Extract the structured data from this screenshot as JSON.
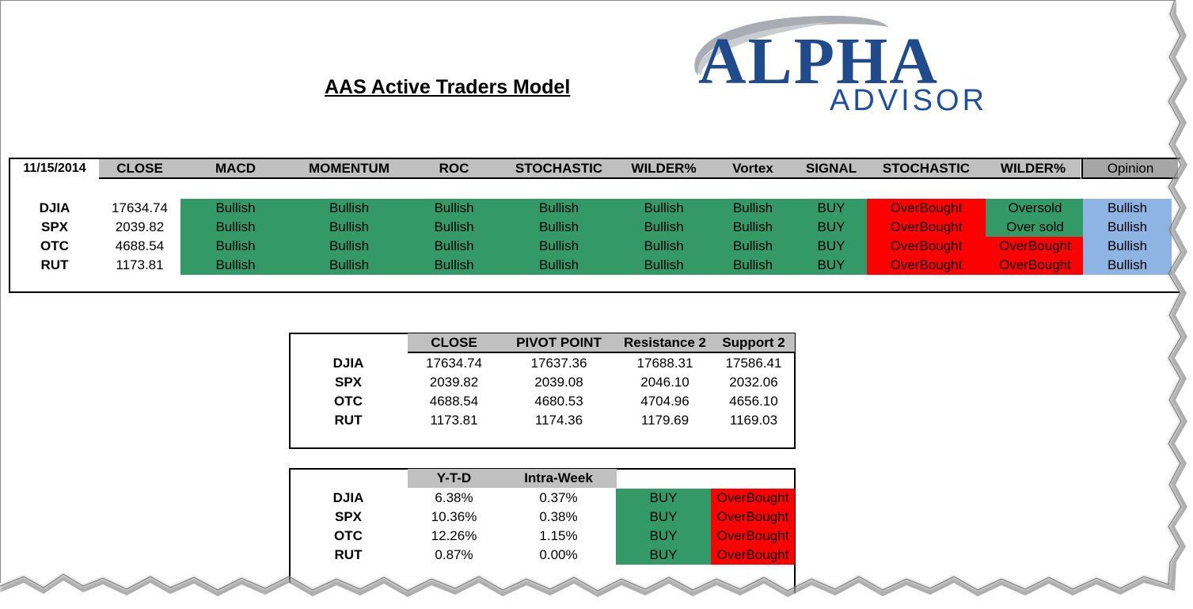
{
  "report": {
    "title": "AAS Active Traders Model"
  },
  "logo": {
    "main": "ALPHA",
    "sub": "ADVISOR"
  },
  "model": {
    "date": "11/15/2014",
    "headers": [
      "CLOSE",
      "MACD",
      "MOMENTUM",
      "ROC",
      "STOCHASTIC",
      "WILDER%",
      "Vortex",
      "SIGNAL",
      "STOCHASTIC",
      "WILDER%"
    ],
    "opinion_header": "Opinion",
    "rows": [
      {
        "symbol": "DJIA",
        "close": "17634.74",
        "macd": "Bullish",
        "momentum": "Bullish",
        "roc": "Bullish",
        "stochastic": "Bullish",
        "wilder": "Bullish",
        "vortex": "Bullish",
        "signal": "BUY",
        "stoch_status": "OverBought",
        "wilder_status": "Oversold",
        "opinion": "Bullish"
      },
      {
        "symbol": "SPX",
        "close": "2039.82",
        "macd": "Bullish",
        "momentum": "Bullish",
        "roc": "Bullish",
        "stochastic": "Bullish",
        "wilder": "Bullish",
        "vortex": "Bullish",
        "signal": "BUY",
        "stoch_status": "OverBought",
        "wilder_status": "Over sold",
        "opinion": "Bullish"
      },
      {
        "symbol": "OTC",
        "close": "4688.54",
        "macd": "Bullish",
        "momentum": "Bullish",
        "roc": "Bullish",
        "stochastic": "Bullish",
        "wilder": "Bullish",
        "vortex": "Bullish",
        "signal": "BUY",
        "stoch_status": "OverBought",
        "wilder_status": "OverBought",
        "opinion": "Bullish"
      },
      {
        "symbol": "RUT",
        "close": "1173.81",
        "macd": "Bullish",
        "momentum": "Bullish",
        "roc": "Bullish",
        "stochastic": "Bullish",
        "wilder": "Bullish",
        "vortex": "Bullish",
        "signal": "BUY",
        "stoch_status": "OverBought",
        "wilder_status": "OverBought",
        "opinion": "Bullish"
      }
    ]
  },
  "pivot": {
    "headers": [
      "CLOSE",
      "PIVOT POINT",
      "Resistance 2",
      "Support 2"
    ],
    "rows": [
      {
        "symbol": "DJIA",
        "close": "17634.74",
        "pivot": "17637.36",
        "r2": "17688.31",
        "s2": "17586.41"
      },
      {
        "symbol": "SPX",
        "close": "2039.82",
        "pivot": "2039.08",
        "r2": "2046.10",
        "s2": "2032.06"
      },
      {
        "symbol": "OTC",
        "close": "4688.54",
        "pivot": "4680.53",
        "r2": "4704.96",
        "s2": "4656.10"
      },
      {
        "symbol": "RUT",
        "close": "1173.81",
        "pivot": "1174.36",
        "r2": "1179.69",
        "s2": "1169.03"
      }
    ]
  },
  "performance": {
    "headers": [
      "Y-T-D",
      "Intra-Week"
    ],
    "rows": [
      {
        "symbol": "DJIA",
        "ytd": "6.38%",
        "week": "0.37%",
        "signal": "BUY",
        "status": "OverBought"
      },
      {
        "symbol": "SPX",
        "ytd": "10.36%",
        "week": "0.38%",
        "signal": "BUY",
        "status": "OverBought"
      },
      {
        "symbol": "OTC",
        "ytd": "12.26%",
        "week": "1.15%",
        "signal": "BUY",
        "status": "OverBought"
      },
      {
        "symbol": "RUT",
        "ytd": "0.87%",
        "week": "0.00%",
        "signal": "BUY",
        "status": "OverBought"
      }
    ]
  },
  "colors": {
    "bullish": "#339966",
    "overbought": "#ff0000",
    "opinion": "#8db4e2",
    "header": "#c0c0c0",
    "logo_main": "#1f4b8c",
    "logo_sub": "#1e4fa0"
  },
  "icons": {
    "logo_swoosh": "swoosh-icon"
  }
}
